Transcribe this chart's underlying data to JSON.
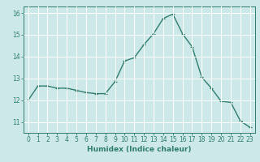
{
  "x": [
    0,
    1,
    2,
    3,
    4,
    5,
    6,
    7,
    8,
    9,
    10,
    11,
    12,
    13,
    14,
    15,
    16,
    17,
    18,
    19,
    20,
    21,
    22,
    23
  ],
  "y": [
    12.0,
    12.65,
    12.65,
    12.55,
    12.55,
    12.45,
    12.35,
    12.3,
    12.3,
    12.85,
    13.8,
    13.95,
    14.55,
    15.05,
    15.75,
    15.95,
    15.05,
    14.45,
    13.05,
    12.55,
    11.95,
    11.9,
    11.05,
    10.75
  ],
  "line_color": "#2e7d6e",
  "marker": "+",
  "marker_size": 3,
  "linewidth": 1.0,
  "xlabel": "Humidex (Indice chaleur)",
  "ylim": [
    10.5,
    16.3
  ],
  "xlim": [
    -0.5,
    23.5
  ],
  "yticks": [
    11,
    12,
    13,
    14,
    15,
    16
  ],
  "xticks": [
    0,
    1,
    2,
    3,
    4,
    5,
    6,
    7,
    8,
    9,
    10,
    11,
    12,
    13,
    14,
    15,
    16,
    17,
    18,
    19,
    20,
    21,
    22,
    23
  ],
  "bg_color": "#cde8e8",
  "grid_color": "#ffffff",
  "tick_color": "#2e7d6e",
  "label_color": "#2e7d6e",
  "xlabel_fontsize": 6.5,
  "tick_fontsize": 5.5
}
